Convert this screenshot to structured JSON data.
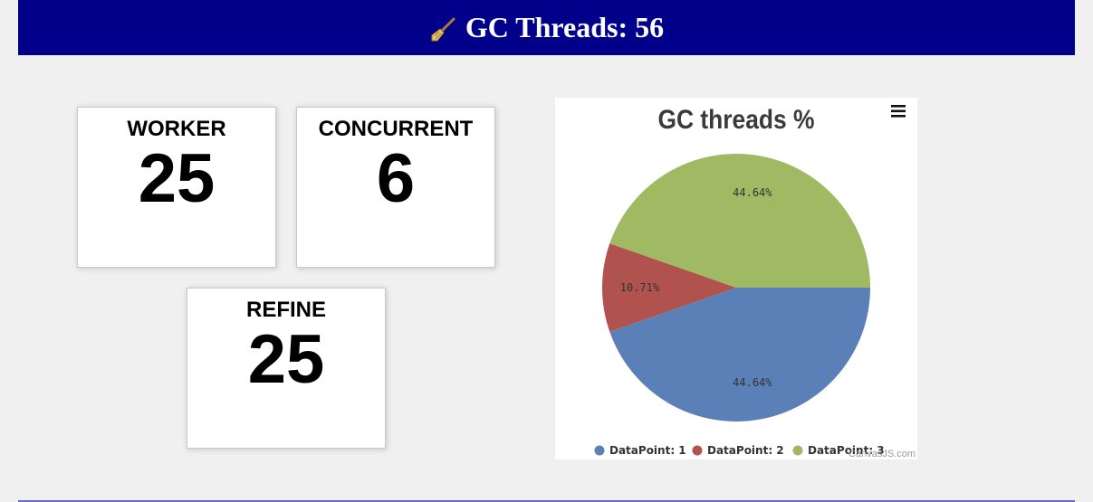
{
  "header": {
    "icon": "broom-icon",
    "title": "GC Threads: 56"
  },
  "cards": {
    "worker": {
      "label": "WORKER",
      "value": "25"
    },
    "concurrent": {
      "label": "CONCURRENT",
      "value": "6"
    },
    "refine": {
      "label": "REFINE",
      "value": "25"
    }
  },
  "chart_data": {
    "type": "pie",
    "title": "GC threads %",
    "watermark": "CanvasJS.com",
    "menu_icon": "hamburger-menu-icon",
    "legend_position": "bottom",
    "series": [
      {
        "name": "DataPoint: 1",
        "value": 25,
        "label": "44.64%",
        "color": "#5b80b8"
      },
      {
        "name": "DataPoint: 2",
        "value": 6,
        "label": "10.71%",
        "color": "#b0534e"
      },
      {
        "name": "DataPoint: 3",
        "value": 25,
        "label": "44.64%",
        "color": "#9fba62"
      }
    ]
  }
}
